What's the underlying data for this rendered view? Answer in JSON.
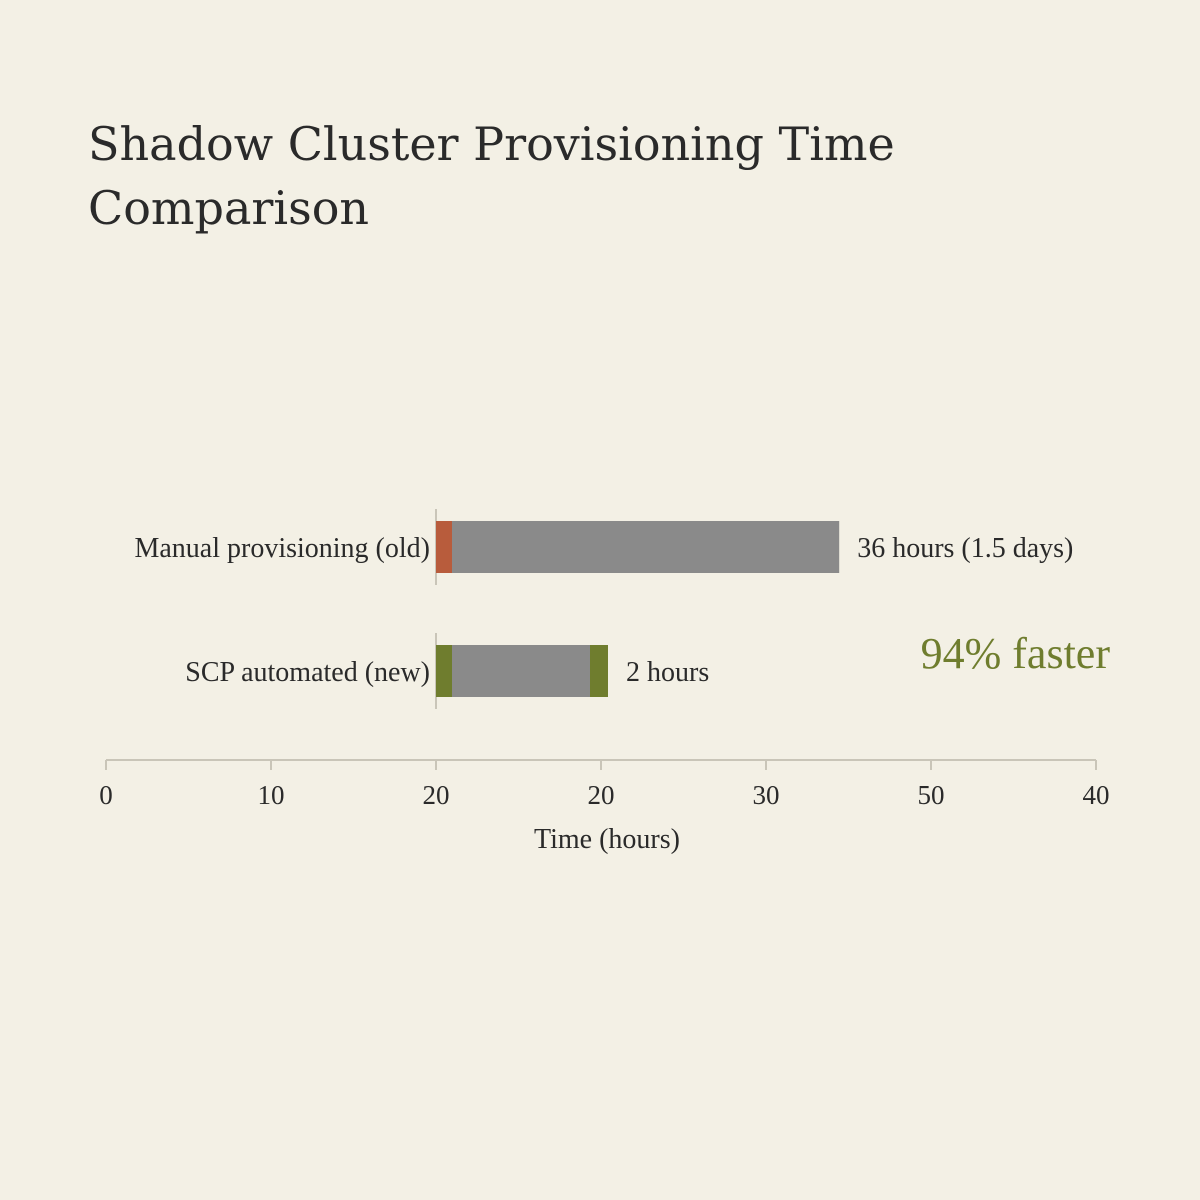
{
  "chart_data": {
    "type": "bar",
    "title": "Shadow Cluster Provisioning Time\nComparison",
    "categories": [
      "Manual provisioning (old)",
      "SCP automated (new)"
    ],
    "series": [
      {
        "values": [
          36,
          2
        ]
      }
    ],
    "value_labels": [
      "36 hours (1.5 days)",
      "2 hours"
    ],
    "annotation": "94% faster",
    "xlabel": "Time (hours)",
    "x_tick_labels": [
      "0",
      "10",
      "20",
      "20",
      "30",
      "50",
      "40"
    ],
    "grid": false,
    "colors": {
      "bar_fill": "#8a8a8a",
      "old_accent": "#b85c3c",
      "new_accent": "#6f7d2e",
      "annotation": "#6f7d2e",
      "axis": "#c9c5b8",
      "background": "#f3f0e5"
    }
  }
}
